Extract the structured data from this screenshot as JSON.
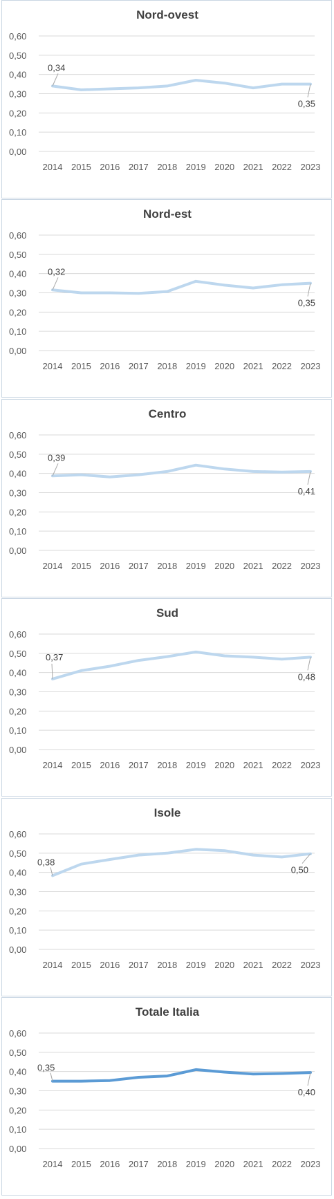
{
  "chart_data": [
    {
      "type": "line",
      "title": "Nord-ovest",
      "x": [
        "2014",
        "2015",
        "2016",
        "2017",
        "2018",
        "2019",
        "2020",
        "2021",
        "2022",
        "2023"
      ],
      "series": [
        {
          "values": [
            0.34,
            0.32,
            0.325,
            0.33,
            0.34,
            0.37,
            0.355,
            0.33,
            0.35,
            0.35
          ]
        }
      ],
      "data_labels": [
        {
          "index": 0,
          "text": "0,34"
        },
        {
          "index": 9,
          "text": "0,35"
        }
      ],
      "yticks": [
        "0,00",
        "0,10",
        "0,20",
        "0,30",
        "0,40",
        "0,50",
        "0,60"
      ],
      "ylim": [
        0,
        0.6
      ],
      "grid": true,
      "color": "#bdd7ee"
    },
    {
      "type": "line",
      "title": "Nord-est",
      "x": [
        "2014",
        "2015",
        "2016",
        "2017",
        "2018",
        "2019",
        "2020",
        "2021",
        "2022",
        "2023"
      ],
      "series": [
        {
          "values": [
            0.315,
            0.3,
            0.3,
            0.297,
            0.307,
            0.36,
            0.34,
            0.325,
            0.342,
            0.35
          ]
        }
      ],
      "data_labels": [
        {
          "index": 0,
          "text": "0,32"
        },
        {
          "index": 9,
          "text": "0,35"
        }
      ],
      "yticks": [
        "0,00",
        "0,10",
        "0,20",
        "0,30",
        "0,40",
        "0,50",
        "0,60"
      ],
      "ylim": [
        0,
        0.6
      ],
      "grid": true,
      "color": "#bdd7ee"
    },
    {
      "type": "line",
      "title": "Centro",
      "x": [
        "2014",
        "2015",
        "2016",
        "2017",
        "2018",
        "2019",
        "2020",
        "2021",
        "2022",
        "2023"
      ],
      "series": [
        {
          "values": [
            0.387,
            0.393,
            0.382,
            0.393,
            0.41,
            0.443,
            0.423,
            0.41,
            0.407,
            0.41
          ]
        }
      ],
      "data_labels": [
        {
          "index": 0,
          "text": "0,39"
        },
        {
          "index": 9,
          "text": "0,41"
        }
      ],
      "yticks": [
        "0,00",
        "0,10",
        "0,20",
        "0,30",
        "0,40",
        "0,50",
        "0,60"
      ],
      "ylim": [
        0,
        0.6
      ],
      "grid": true,
      "color": "#bdd7ee"
    },
    {
      "type": "line",
      "title": "Sud",
      "x": [
        "2014",
        "2015",
        "2016",
        "2017",
        "2018",
        "2019",
        "2020",
        "2021",
        "2022",
        "2023"
      ],
      "series": [
        {
          "values": [
            0.367,
            0.41,
            0.433,
            0.463,
            0.483,
            0.507,
            0.487,
            0.48,
            0.47,
            0.48
          ]
        }
      ],
      "data_labels": [
        {
          "index": 0,
          "text": "0,37"
        },
        {
          "index": 9,
          "text": "0,48"
        }
      ],
      "yticks": [
        "0,00",
        "0,10",
        "0,20",
        "0,30",
        "0,40",
        "0,50",
        "0,60"
      ],
      "ylim": [
        0,
        0.6
      ],
      "grid": true,
      "color": "#bdd7ee"
    },
    {
      "type": "line",
      "title": "Isole",
      "x": [
        "2014",
        "2015",
        "2016",
        "2017",
        "2018",
        "2019",
        "2020",
        "2021",
        "2022",
        "2023"
      ],
      "series": [
        {
          "values": [
            0.383,
            0.443,
            0.467,
            0.49,
            0.5,
            0.52,
            0.513,
            0.49,
            0.48,
            0.497
          ]
        }
      ],
      "data_labels": [
        {
          "index": 0,
          "text": "0,38"
        },
        {
          "index": 9,
          "text": "0,50"
        }
      ],
      "yticks": [
        "0,00",
        "0,10",
        "0,20",
        "0,30",
        "0,40",
        "0,50",
        "0,60"
      ],
      "ylim": [
        0,
        0.6
      ],
      "grid": true,
      "color": "#bdd7ee"
    },
    {
      "type": "line",
      "title": "Totale Italia",
      "x": [
        "2014",
        "2015",
        "2016",
        "2017",
        "2018",
        "2019",
        "2020",
        "2021",
        "2022",
        "2023"
      ],
      "series": [
        {
          "values": [
            0.35,
            0.35,
            0.353,
            0.37,
            0.377,
            0.41,
            0.397,
            0.387,
            0.39,
            0.395
          ]
        }
      ],
      "data_labels": [
        {
          "index": 0,
          "text": "0,35"
        },
        {
          "index": 9,
          "text": "0,40"
        }
      ],
      "yticks": [
        "0,00",
        "0,10",
        "0,20",
        "0,30",
        "0,40",
        "0,50",
        "0,60"
      ],
      "ylim": [
        0,
        0.6
      ],
      "grid": true,
      "color": "#5b9bd5"
    }
  ]
}
